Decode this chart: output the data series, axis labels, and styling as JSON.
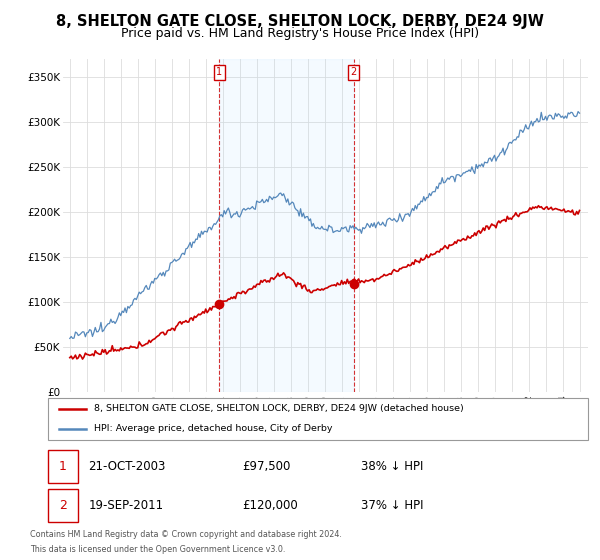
{
  "title": "8, SHELTON GATE CLOSE, SHELTON LOCK, DERBY, DE24 9JW",
  "subtitle": "Price paid vs. HM Land Registry's House Price Index (HPI)",
  "title_fontsize": 10.5,
  "subtitle_fontsize": 9,
  "ylim": [
    0,
    370000
  ],
  "yticks": [
    0,
    50000,
    100000,
    150000,
    200000,
    250000,
    300000,
    350000
  ],
  "ytick_labels": [
    "£0",
    "£50K",
    "£100K",
    "£150K",
    "£200K",
    "£250K",
    "£300K",
    "£350K"
  ],
  "background_color": "#ffffff",
  "plot_bg_color": "#ffffff",
  "grid_color": "#dddddd",
  "hpi_color": "#5588bb",
  "price_color": "#cc0000",
  "sale1_year": 2003.79,
  "sale1_price": 97500,
  "sale1_hpi_pct": 38,
  "sale1_date": "21-OCT-2003",
  "sale2_year": 2011.71,
  "sale2_price": 120000,
  "sale2_hpi_pct": 37,
  "sale2_date": "19-SEP-2011",
  "legend_label_price": "8, SHELTON GATE CLOSE, SHELTON LOCK, DERBY, DE24 9JW (detached house)",
  "legend_label_hpi": "HPI: Average price, detached house, City of Derby",
  "footnote1": "Contains HM Land Registry data © Crown copyright and database right 2024.",
  "footnote2": "This data is licensed under the Open Government Licence v3.0."
}
